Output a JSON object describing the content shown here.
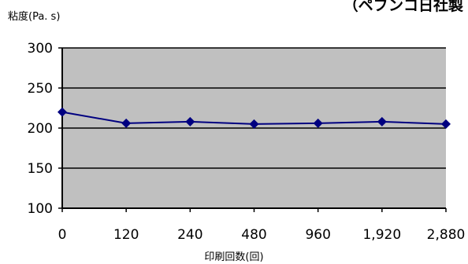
{
  "corner_title": "（ペフンコ日社製",
  "chart_data": {
    "type": "line",
    "title": "",
    "ylabel": "粘度(Pa. s)",
    "xlabel": "印刷回数(回)",
    "categories": [
      "0",
      "120",
      "240",
      "480",
      "960",
      "1,920",
      "2,880"
    ],
    "series": [
      {
        "values": [
          220,
          206,
          208,
          205,
          206,
          208,
          205
        ]
      }
    ],
    "ylim": [
      100,
      300
    ],
    "yticks": [
      100,
      150,
      200,
      250,
      300
    ],
    "grid": true,
    "legend": "none",
    "colors": {
      "plot_bg": "#c0c0c0",
      "line": "#000080",
      "grid": "#000000"
    }
  }
}
